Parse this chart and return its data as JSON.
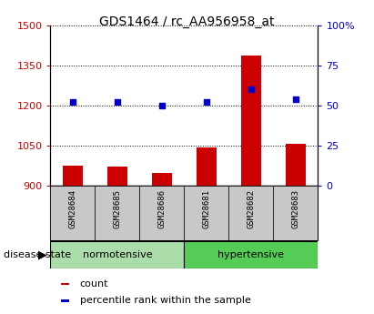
{
  "title": "GDS1464 / rc_AA956958_at",
  "samples": [
    "GSM28684",
    "GSM28685",
    "GSM28686",
    "GSM28681",
    "GSM28682",
    "GSM28683"
  ],
  "count_values": [
    975,
    970,
    945,
    1040,
    1385,
    1055
  ],
  "percentile_values": [
    52,
    52,
    50,
    52,
    60,
    54
  ],
  "ylim_left": [
    900,
    1500
  ],
  "ylim_right": [
    0,
    100
  ],
  "yticks_left": [
    900,
    1050,
    1200,
    1350,
    1500
  ],
  "yticks_right": [
    0,
    25,
    50,
    75,
    100
  ],
  "ytick_labels_left": [
    "900",
    "1050",
    "1200",
    "1350",
    "1500"
  ],
  "ytick_labels_right": [
    "0",
    "25",
    "50",
    "75",
    "100%"
  ],
  "bar_color": "#cc0000",
  "dot_color": "#0000cc",
  "groups": [
    {
      "label": "normotensive",
      "indices": [
        0,
        1,
        2
      ],
      "color": "#aaddaa"
    },
    {
      "label": "hypertensive",
      "indices": [
        3,
        4,
        5
      ],
      "color": "#55cc55"
    }
  ],
  "legend_items": [
    {
      "label": "count",
      "color": "#cc0000"
    },
    {
      "label": "percentile rank within the sample",
      "color": "#0000cc"
    }
  ],
  "disease_state_label": "disease state",
  "bar_width": 0.45,
  "sample_box_color": "#c8c8c8",
  "background_color": "#ffffff",
  "title_fontsize": 10,
  "tick_fontsize": 8,
  "label_fontsize": 8,
  "legend_fontsize": 8
}
